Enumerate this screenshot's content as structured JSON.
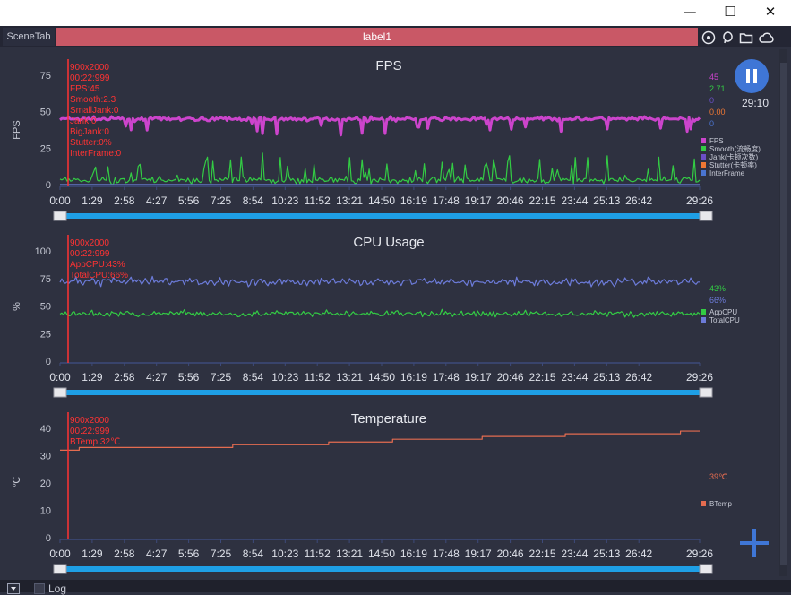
{
  "window": {
    "minimize_glyph": "—",
    "maximize_glyph": "☐",
    "close_glyph": "✕"
  },
  "tabs": {
    "scene_label": "SceneTab",
    "active_label": "label1",
    "icons": [
      "location-icon",
      "chat-bubble-icon",
      "folder-icon",
      "cloud-icon"
    ]
  },
  "controls": {
    "pause_icon": "pause-icon",
    "timer": "29:10",
    "add_icon": "plus-icon"
  },
  "footer": {
    "log_label": "Log"
  },
  "colors": {
    "fps": "#cc44cc",
    "smooth": "#33cc44",
    "jank": "#6b4fc8",
    "stutter": "#ee7733",
    "interframe": "#4a74d0",
    "appcpu": "#33cc44",
    "totalcpu": "#6c7bd9",
    "btemp": "#e46c50",
    "cursor": "#ff3333",
    "range": "#1e9fe6"
  },
  "x_ticks": [
    "0:00",
    "1:29",
    "2:58",
    "4:27",
    "5:56",
    "7:25",
    "8:54",
    "10:23",
    "11:52",
    "13:21",
    "14:50",
    "16:19",
    "17:48",
    "19:17",
    "20:46",
    "22:15",
    "23:44",
    "25:13",
    "26:42",
    "29:26"
  ],
  "chart_data": [
    {
      "type": "line",
      "title": "FPS",
      "ylabel": "FPS",
      "xlabel": "",
      "ylim": [
        0,
        75
      ],
      "yticks": [
        "0",
        "25",
        "50",
        "75"
      ],
      "xrange": [
        "0:00",
        "29:26"
      ],
      "cursor": {
        "x": "00:22:999",
        "lines": [
          "900x2000",
          "00:22:999",
          "FPS:45",
          "Smooth:2.3",
          "SmallJank:0",
          "Jank:0",
          "BigJank:0",
          "Stutter:0%",
          "InterFrame:0"
        ]
      },
      "series": [
        {
          "name": "FPS",
          "color": "#cc44cc",
          "mean": 45,
          "noise": 1.2,
          "spikes_down": 0.04,
          "current": "45"
        },
        {
          "name": "Smooth(流畅度)",
          "color": "#33cc44",
          "mean": 3,
          "noise": 2.2,
          "spikes_up": 0.12,
          "current": "2.71"
        },
        {
          "name": "Jank(卡顿次数)",
          "color": "#6b4fc8",
          "mean": 0,
          "current": "0"
        },
        {
          "name": "Stutter(卡顿率)",
          "color": "#ee7733",
          "mean": 0,
          "current": "0.00"
        },
        {
          "name": "InterFrame",
          "color": "#4a74d0",
          "mean": 0,
          "current": "0"
        }
      ]
    },
    {
      "type": "line",
      "title": "CPU Usage",
      "ylabel": "%",
      "xlabel": "",
      "ylim": [
        0,
        100
      ],
      "yticks": [
        "0",
        "25",
        "50",
        "75",
        "100"
      ],
      "xrange": [
        "0:00",
        "29:26"
      ],
      "cursor": {
        "x": "00:22:999",
        "lines": [
          "900x2000",
          "00:22:999",
          "AppCPU:43%",
          "TotalCPU:66%"
        ]
      },
      "series": [
        {
          "name": "AppCPU",
          "color": "#33cc44",
          "mean": 43,
          "noise": 2.5,
          "current": "43%"
        },
        {
          "name": "TotalCPU",
          "color": "#6c7bd9",
          "mean": 72,
          "noise": 3.5,
          "current": "66%"
        }
      ]
    },
    {
      "type": "line",
      "title": "Temperature",
      "ylabel": "℃",
      "xlabel": "",
      "ylim": [
        0,
        40
      ],
      "yticks": [
        "0",
        "10",
        "20",
        "30",
        "40"
      ],
      "xrange": [
        "0:00",
        "29:26"
      ],
      "cursor": {
        "x": "00:22:999",
        "lines": [
          "900x2000",
          "00:22:999",
          "BTemp:32℃"
        ]
      },
      "series": [
        {
          "name": "BTemp",
          "color": "#e46c50",
          "steps": [
            [
              0,
              32
            ],
            [
              0.03,
              33
            ],
            [
              0.27,
              34
            ],
            [
              0.42,
              35
            ],
            [
              0.52,
              36
            ],
            [
              0.66,
              37
            ],
            [
              0.79,
              38
            ],
            [
              0.97,
              39
            ]
          ],
          "current": "39℃"
        }
      ]
    }
  ]
}
